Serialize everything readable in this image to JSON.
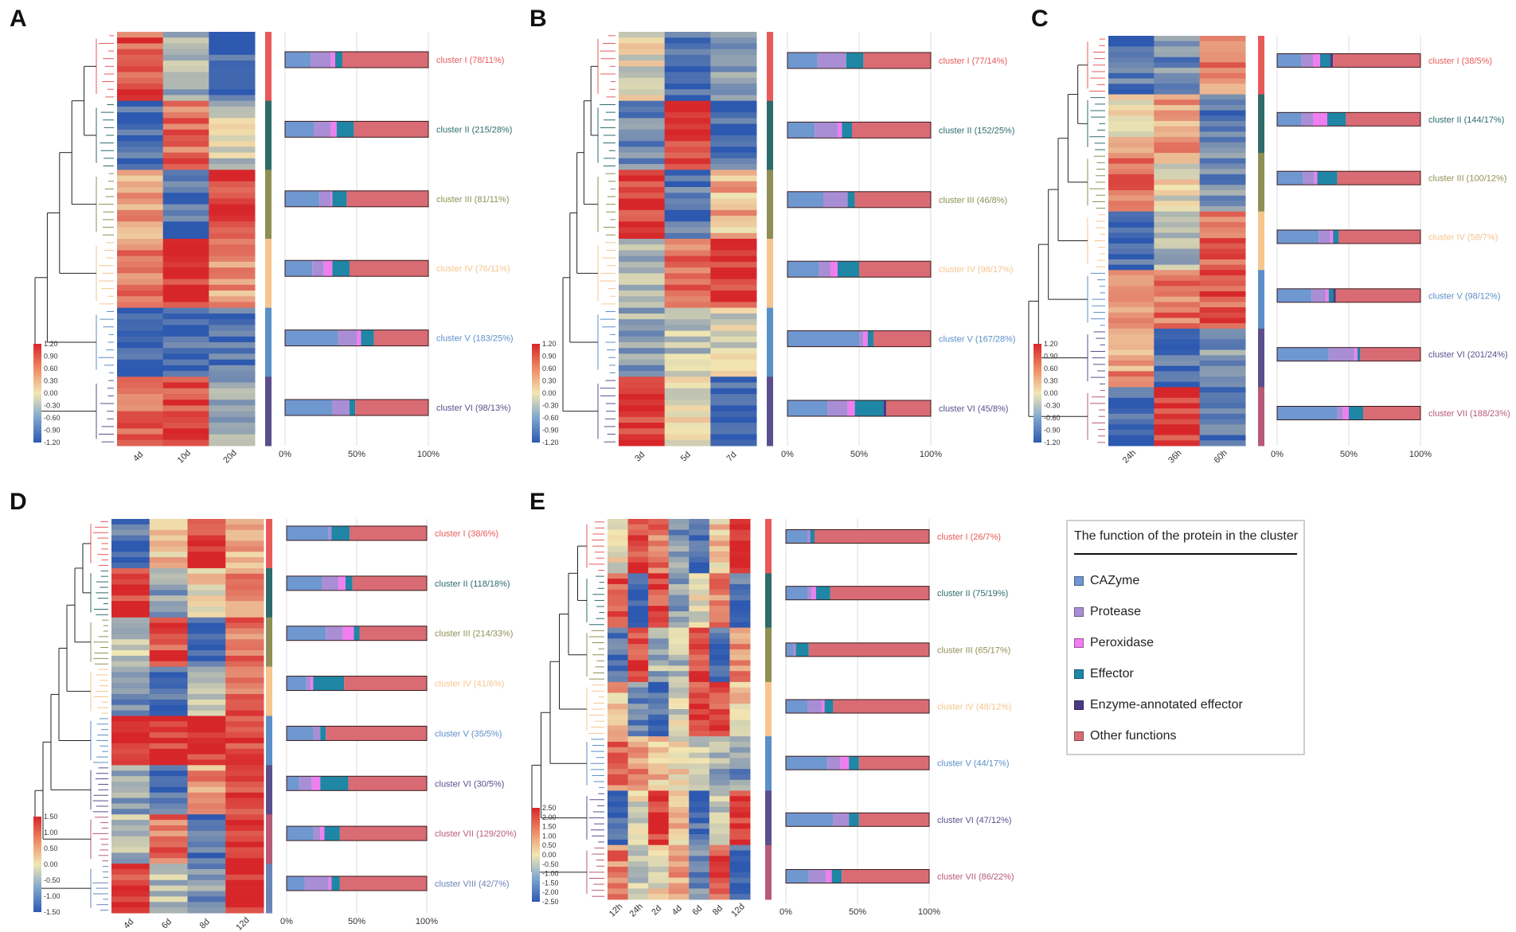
{
  "colors": {
    "CAZyme": "#6f97d0",
    "Protease": "#a98ed6",
    "Peroxidase": "#ef7ff0",
    "Effector": "#1f86a6",
    "Enzyme-annotated effector": "#4a3a86",
    "Other functions": "#d96b74",
    "cluster_I": "#e85a5a",
    "cluster_II": "#2e6b6b",
    "cluster_III": "#8f8f55",
    "cluster_IV": "#f6c58e",
    "cluster_V": "#5b8fc7",
    "cluster_VI": "#5a4f8c",
    "cluster_VII": "#b85a76",
    "cluster_VIII": "#6a84b8"
  },
  "legend": {
    "title": "The function of the protein in the cluster",
    "items": [
      "CAZyme",
      "Protease",
      "Peroxidase",
      "Effector",
      "Enzyme-annotated effector",
      "Other functions"
    ]
  },
  "chart_data": [
    {
      "panel": "A",
      "type": "bar",
      "heatmap_columns": [
        "4d",
        "10d",
        "20d"
      ],
      "colorbar": {
        "min": -1.2,
        "max": 1.2,
        "ticks": [
          "1.20",
          "0.90",
          "0.60",
          "0.30",
          "0.00",
          "-0.30",
          "-0.60",
          "-0.90",
          "-1.20"
        ]
      },
      "xlim": [
        0,
        100
      ],
      "xticks": [
        "0%",
        "50%",
        "100%"
      ],
      "clusters": [
        {
          "label": "cluster I (78/11%)",
          "color": "cluster_I",
          "segments": [
            18,
            14,
            3,
            5,
            0,
            60
          ]
        },
        {
          "label": "cluster II (215/28%)",
          "color": "cluster_II",
          "segments": [
            20,
            12,
            4,
            12,
            0,
            52
          ]
        },
        {
          "label": "cluster III (81/11%)",
          "color": "cluster_III",
          "segments": [
            24,
            8,
            1,
            10,
            0,
            57
          ]
        },
        {
          "label": "cluster IV (76/11%)",
          "color": "cluster_IV",
          "segments": [
            19,
            8,
            6,
            12,
            0,
            55
          ]
        },
        {
          "label": "cluster V (183/25%)",
          "color": "cluster_V",
          "segments": [
            37,
            13,
            3,
            9,
            0,
            38
          ]
        },
        {
          "label": "cluster VI (98/13%)",
          "color": "cluster_VI",
          "segments": [
            33,
            12,
            0,
            4,
            0,
            51
          ]
        }
      ]
    },
    {
      "panel": "B",
      "type": "bar",
      "heatmap_columns": [
        "3d",
        "5d",
        "7d"
      ],
      "colorbar": {
        "min": -1.2,
        "max": 1.2,
        "ticks": [
          "1.20",
          "0.90",
          "0.60",
          "0.30",
          "0.00",
          "-0.30",
          "-0.60",
          "-0.90",
          "-1.20"
        ]
      },
      "xlim": [
        0,
        100
      ],
      "xticks": [
        "0%",
        "50%",
        "100%"
      ],
      "clusters": [
        {
          "label": "cluster I (77/14%)",
          "color": "cluster_I",
          "segments": [
            21,
            20,
            0,
            12,
            0,
            47
          ]
        },
        {
          "label": "cluster II (152/25%)",
          "color": "cluster_II",
          "segments": [
            19,
            16,
            3,
            7,
            0,
            55
          ]
        },
        {
          "label": "cluster III (46/8%)",
          "color": "cluster_III",
          "segments": [
            25,
            17,
            0,
            5,
            0,
            53
          ]
        },
        {
          "label": "cluster IV (98/17%)",
          "color": "cluster_IV",
          "segments": [
            22,
            8,
            5,
            15,
            0,
            50
          ]
        },
        {
          "label": "cluster V (167/28%)",
          "color": "cluster_V",
          "segments": [
            50,
            3,
            3,
            4,
            0,
            40
          ]
        },
        {
          "label": "cluster VI (45/8%)",
          "color": "cluster_VI",
          "segments": [
            28,
            14,
            5,
            20,
            2,
            31
          ]
        }
      ]
    },
    {
      "panel": "C",
      "type": "bar",
      "heatmap_columns": [
        "24h",
        "36h",
        "60h"
      ],
      "colorbar": {
        "min": -1.2,
        "max": 1.2,
        "ticks": [
          "1.20",
          "0.90",
          "0.60",
          "0.30",
          "0.00",
          "-0.30",
          "-0.60",
          "-0.90",
          "-1.20"
        ]
      },
      "xlim": [
        0,
        100
      ],
      "xticks": [
        "0%",
        "50%",
        "100%"
      ],
      "clusters": [
        {
          "label": "cluster I (38/5%)",
          "color": "cluster_I",
          "segments": [
            17,
            8,
            5,
            7,
            2,
            61
          ]
        },
        {
          "label": "cluster II (144/17%)",
          "color": "cluster_II",
          "segments": [
            17,
            8,
            10,
            13,
            0,
            52
          ]
        },
        {
          "label": "cluster III (100/12%)",
          "color": "cluster_III",
          "segments": [
            18,
            8,
            2,
            14,
            0,
            58
          ]
        },
        {
          "label": "cluster IV (58/7%)",
          "color": "cluster_IV",
          "segments": [
            29,
            8,
            2,
            4,
            0,
            57
          ]
        },
        {
          "label": "cluster V (98/12%)",
          "color": "cluster_V",
          "segments": [
            24,
            10,
            2,
            3,
            2,
            59
          ]
        },
        {
          "label": "cluster VI (201/24%)",
          "color": "cluster_VI",
          "segments": [
            36,
            18,
            2,
            2,
            0,
            42
          ]
        },
        {
          "label": "cluster VII (188/23%)",
          "color": "cluster_VII",
          "segments": [
            42,
            4,
            4,
            10,
            0,
            40
          ]
        }
      ]
    },
    {
      "panel": "D",
      "type": "bar",
      "heatmap_columns": [
        "4d",
        "6d",
        "8d",
        "12d"
      ],
      "colorbar": {
        "min": -1.5,
        "max": 1.5,
        "ticks": [
          "1.50",
          "1.00",
          "0.50",
          "0.00",
          "-0.50",
          "-1.00",
          "-1.50"
        ]
      },
      "xlim": [
        0,
        100
      ],
      "xticks": [
        "0%",
        "50%",
        "100%"
      ],
      "clusters": [
        {
          "label": "cluster I (38/6%)",
          "color": "cluster_I",
          "segments": [
            30,
            2,
            0,
            13,
            0,
            55
          ]
        },
        {
          "label": "cluster II (118/18%)",
          "color": "cluster_II",
          "segments": [
            25,
            12,
            5,
            5,
            0,
            53
          ]
        },
        {
          "label": "cluster III (214/33%)",
          "color": "cluster_III",
          "segments": [
            28,
            12,
            8,
            4,
            0,
            48
          ]
        },
        {
          "label": "cluster IV (41/6%)",
          "color": "cluster_IV",
          "segments": [
            14,
            3,
            2,
            22,
            0,
            59
          ]
        },
        {
          "label": "cluster V (35/5%)",
          "color": "cluster_V",
          "segments": [
            19,
            5,
            0,
            4,
            0,
            72
          ]
        },
        {
          "label": "cluster VI (30/5%)",
          "color": "cluster_VI",
          "segments": [
            9,
            9,
            6,
            20,
            0,
            56
          ]
        },
        {
          "label": "cluster VII (129/20%)",
          "color": "cluster_VII",
          "segments": [
            19,
            5,
            3,
            11,
            0,
            62
          ]
        },
        {
          "label": "cluster VIII (42/7%)",
          "color": "cluster_VIII",
          "segments": [
            13,
            17,
            2,
            6,
            0,
            62
          ]
        }
      ]
    },
    {
      "panel": "E",
      "type": "bar",
      "heatmap_columns": [
        "12h",
        "24h",
        "2d",
        "4d",
        "6d",
        "8d",
        "12d"
      ],
      "colorbar": {
        "min": -2.5,
        "max": 2.5,
        "ticks": [
          "2.50",
          "2.00",
          "1.50",
          "1.00",
          "0.50",
          "0.00",
          "-0.50",
          "-1.00",
          "-1.50",
          "-2.00",
          "-2.50"
        ]
      },
      "xlim": [
        0,
        100
      ],
      "xticks": [
        "0%",
        "50%",
        "100%"
      ],
      "clusters": [
        {
          "label": "cluster I (26/7%)",
          "color": "cluster_I",
          "segments": [
            15,
            2,
            0,
            3,
            0,
            80
          ]
        },
        {
          "label": "cluster II (75/19%)",
          "color": "cluster_II",
          "segments": [
            15,
            3,
            3,
            10,
            0,
            69
          ]
        },
        {
          "label": "cluster III (65/17%)",
          "color": "cluster_III",
          "segments": [
            5,
            2,
            0,
            9,
            0,
            84
          ]
        },
        {
          "label": "cluster IV (48/12%)",
          "color": "cluster_IV",
          "segments": [
            15,
            10,
            2,
            6,
            0,
            67
          ]
        },
        {
          "label": "cluster V (44/17%)",
          "color": "cluster_V",
          "segments": [
            29,
            9,
            6,
            7,
            0,
            49
          ]
        },
        {
          "label": "cluster VI (47/12%)",
          "color": "cluster_VI",
          "segments": [
            33,
            11,
            0,
            7,
            0,
            49
          ]
        },
        {
          "label": "cluster VII (86/22%)",
          "color": "cluster_VII",
          "segments": [
            16,
            12,
            4,
            7,
            0,
            61
          ]
        }
      ]
    }
  ]
}
